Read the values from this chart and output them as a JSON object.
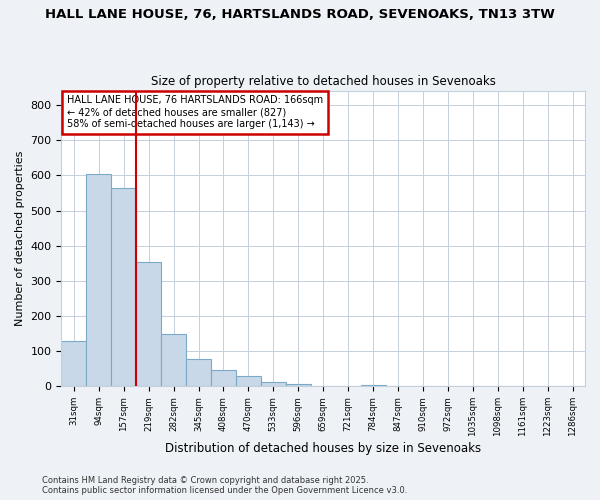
{
  "title_line1": "HALL LANE HOUSE, 76, HARTSLANDS ROAD, SEVENOAKS, TN13 3TW",
  "title_line2": "Size of property relative to detached houses in Sevenoaks",
  "xlabel": "Distribution of detached houses by size in Sevenoaks",
  "ylabel": "Number of detached properties",
  "categories": [
    "31sqm",
    "94sqm",
    "157sqm",
    "219sqm",
    "282sqm",
    "345sqm",
    "408sqm",
    "470sqm",
    "533sqm",
    "596sqm",
    "659sqm",
    "721sqm",
    "784sqm",
    "847sqm",
    "910sqm",
    "972sqm",
    "1035sqm",
    "1098sqm",
    "1161sqm",
    "1223sqm",
    "1286sqm"
  ],
  "values": [
    130,
    605,
    565,
    355,
    150,
    77,
    47,
    30,
    12,
    8,
    0,
    0,
    3,
    0,
    0,
    0,
    0,
    0,
    0,
    0,
    0
  ],
  "bar_color": "#c8d8e8",
  "bar_edge_color": "#7aaac8",
  "red_line_index": 2,
  "annotation_line1": "HALL LANE HOUSE, 76 HARTSLANDS ROAD: 166sqm",
  "annotation_line2": "← 42% of detached houses are smaller (827)",
  "annotation_line3": "58% of semi-detached houses are larger (1,143) →",
  "annotation_box_color": "#ffffff",
  "annotation_box_edge_color": "#cc0000",
  "footer_line1": "Contains HM Land Registry data © Crown copyright and database right 2025.",
  "footer_line2": "Contains public sector information licensed under the Open Government Licence v3.0.",
  "ylim": [
    0,
    840
  ],
  "yticks": [
    0,
    100,
    200,
    300,
    400,
    500,
    600,
    700,
    800
  ],
  "background_color": "#eef2f7",
  "plot_background_color": "#ffffff",
  "grid_color": "#c5d0dc"
}
